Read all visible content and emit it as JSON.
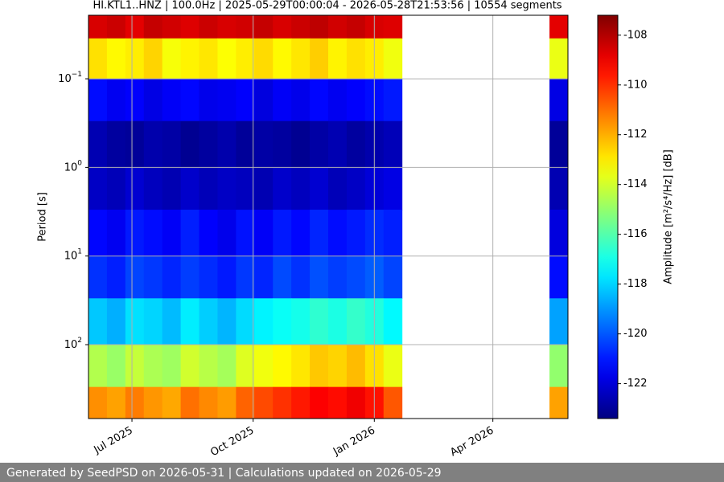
{
  "chart_data": {
    "type": "heatmap",
    "title": "HI.KTL1..HNZ | 100.0Hz | 2025-05-29T00:00:04 - 2026-05-28T21:53:56 | 10554 segments",
    "y_label": "Period [s]",
    "colorbar_label": "Amplitude [m²/s⁴/Hz] [dB]",
    "colormap": "jet",
    "grid": true,
    "y_log": true,
    "y_inverted": true,
    "xlim": [
      0,
      364
    ],
    "xticks": [
      {
        "value": 33,
        "label": "Jul 2025"
      },
      {
        "value": 125,
        "label": "Oct 2025"
      },
      {
        "value": 217,
        "label": "Jan 2026"
      },
      {
        "value": 307,
        "label": "Apr 2026"
      }
    ],
    "ylim": [
      0.0192,
      682
    ],
    "yticks": [
      {
        "value": 0.1,
        "label": "10",
        "exponent": "−1"
      },
      {
        "value": 1,
        "label": "10",
        "exponent": "0"
      },
      {
        "value": 10,
        "label": "10",
        "exponent": "1"
      },
      {
        "value": 100,
        "label": "10",
        "exponent": "2"
      }
    ],
    "clim": [
      -123.4,
      -107.2
    ],
    "cticks": [
      -108,
      -110,
      -112,
      -114,
      -116,
      -118,
      -120,
      -122
    ],
    "x_edges": [
      0,
      14,
      28,
      42,
      56,
      70,
      84,
      98,
      112,
      126,
      140,
      154,
      168,
      182,
      196,
      210,
      224,
      238,
      252,
      266,
      280,
      294,
      308,
      322,
      336,
      350,
      364
    ],
    "y_edges": [
      0.0192,
      0.035,
      0.1,
      0.3,
      1,
      3,
      10,
      30,
      100,
      300,
      682
    ],
    "z": [
      [
        -108.6,
        -108.4,
        -108.8,
        -108.3,
        -108.5,
        -108.7,
        -108.4,
        -108.6,
        -108.5,
        -108.3,
        -108.6,
        -108.4,
        -108.2,
        -108.5,
        -108.3,
        -108.6,
        -108.7,
        null,
        null,
        null,
        null,
        null,
        null,
        null,
        null,
        -108.8
      ],
      [
        -112.8,
        -113.2,
        -113.0,
        -112.6,
        -113.4,
        -113.1,
        -112.9,
        -113.3,
        -113.0,
        -112.7,
        -113.2,
        -112.9,
        -112.5,
        -113.1,
        -112.8,
        -113.0,
        -113.5,
        null,
        null,
        null,
        null,
        null,
        null,
        null,
        null,
        -113.6
      ],
      [
        -121.2,
        -121.6,
        -121.4,
        -121.8,
        -121.5,
        -121.3,
        -121.7,
        -121.6,
        -121.4,
        -121.9,
        -121.5,
        -121.7,
        -121.3,
        -121.6,
        -121.4,
        -121.2,
        -121.0,
        null,
        null,
        null,
        null,
        null,
        null,
        null,
        null,
        -121.8
      ],
      [
        -122.6,
        -122.9,
        -123.0,
        -122.7,
        -122.8,
        -123.1,
        -122.9,
        -122.7,
        -123.0,
        -122.8,
        -122.9,
        -123.1,
        -122.8,
        -122.6,
        -122.9,
        -122.7,
        -122.5,
        null,
        null,
        null,
        null,
        null,
        null,
        null,
        null,
        -123.0
      ],
      [
        -122.3,
        -122.5,
        -122.1,
        -122.4,
        -122.6,
        -122.2,
        -122.5,
        -122.3,
        -122.4,
        -122.6,
        -122.2,
        -122.4,
        -122.1,
        -122.5,
        -122.3,
        -122.0,
        -121.8,
        null,
        null,
        null,
        null,
        null,
        null,
        null,
        null,
        -122.6
      ],
      [
        -121.3,
        -121.6,
        -121.0,
        -121.2,
        -121.5,
        -120.9,
        -121.4,
        -121.7,
        -121.1,
        -121.5,
        -121.0,
        -121.3,
        -120.8,
        -121.2,
        -121.0,
        -120.7,
        -120.9,
        null,
        null,
        null,
        null,
        null,
        null,
        null,
        null,
        -121.9
      ],
      [
        -120.6,
        -120.9,
        -120.3,
        -120.5,
        -120.8,
        -120.4,
        -120.7,
        -121.0,
        -120.5,
        -120.8,
        -120.2,
        -120.6,
        -120.1,
        -120.4,
        -120.2,
        -119.9,
        -120.3,
        null,
        null,
        null,
        null,
        null,
        null,
        null,
        null,
        -121.2
      ],
      [
        -118.2,
        -118.6,
        -117.8,
        -118.0,
        -118.4,
        -117.6,
        -118.1,
        -118.5,
        -117.9,
        -117.5,
        -117.2,
        -117.0,
        -116.6,
        -116.9,
        -116.5,
        -116.8,
        -117.4,
        null,
        null,
        null,
        null,
        null,
        null,
        null,
        null,
        -118.8
      ],
      [
        -114.5,
        -114.9,
        -114.2,
        -114.6,
        -114.8,
        -114.0,
        -114.4,
        -114.7,
        -113.8,
        -113.5,
        -113.2,
        -112.9,
        -112.4,
        -112.6,
        -112.2,
        -112.8,
        -113.6,
        null,
        null,
        null,
        null,
        null,
        null,
        null,
        null,
        -115.0
      ],
      [
        -111.5,
        -111.8,
        -111.2,
        -111.6,
        -111.9,
        -111.0,
        -111.4,
        -111.7,
        -110.8,
        -110.4,
        -110.0,
        -109.6,
        -109.2,
        -109.4,
        -109.0,
        -109.5,
        -110.6,
        null,
        null,
        null,
        null,
        null,
        null,
        null,
        null,
        -111.8
      ]
    ]
  },
  "footer": "Generated by SeedPSD on 2026-05-31 | Calculations updated on 2026-05-29"
}
